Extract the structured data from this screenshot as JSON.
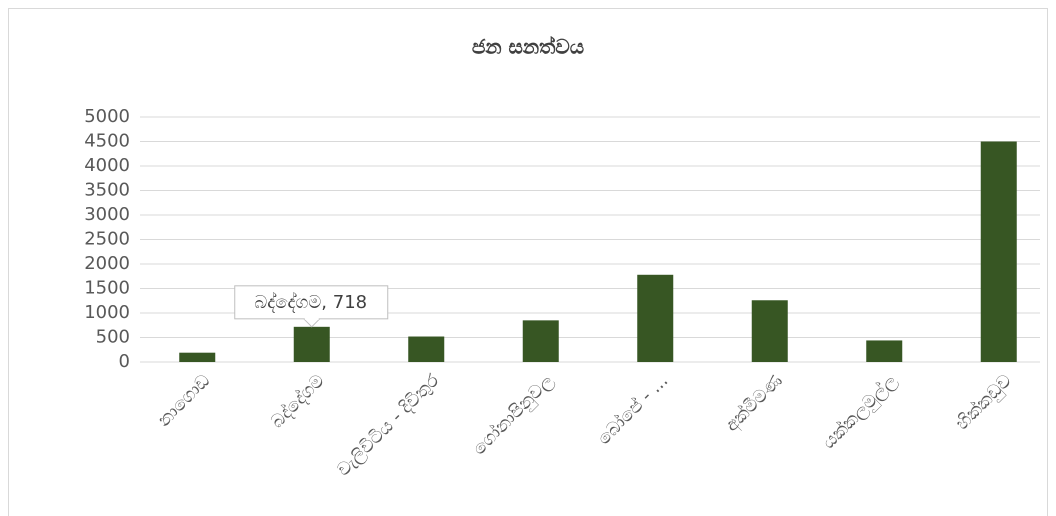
{
  "chart_data": {
    "type": "bar",
    "title": "ජන සනත්වය",
    "categories": [
      "නාගොඩ",
      "බද්දේගම",
      "වැලිවිටිය - දිවිතුර",
      "ගෝනාපිනුවල",
      "බෝපේ - ...",
      "අක්මීමණ",
      "යක්කලමුල්ල",
      "හික්කඩුව"
    ],
    "values": [
      190,
      718,
      520,
      850,
      1780,
      1260,
      440,
      4500
    ],
    "value_labels": [
      null,
      "බද්දේගම, 718",
      null,
      null,
      null,
      null,
      null,
      null
    ],
    "color": "#375623",
    "ylim": [
      0,
      5000
    ],
    "yticks": [
      0,
      500,
      1000,
      1500,
      2000,
      2500,
      3000,
      3500,
      4000,
      4500,
      5000
    ],
    "grid": true
  }
}
